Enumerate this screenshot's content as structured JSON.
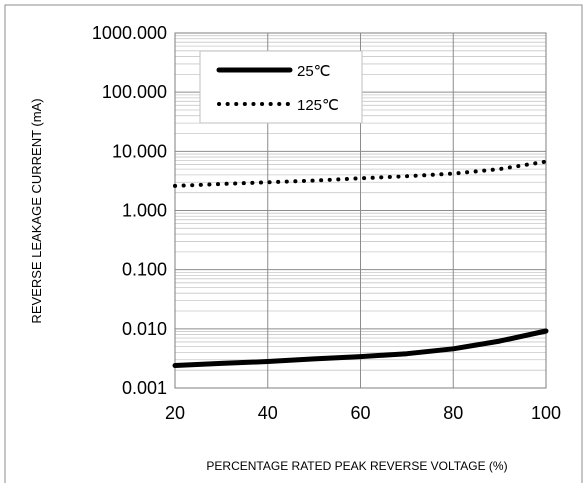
{
  "chart_data": {
    "type": "line",
    "xlabel": "PERCENTAGE RATED PEAK REVERSE VOLTAGE (%)",
    "ylabel": "REVERSE LEAKAGE CURRENT (mA)",
    "xlim": [
      20,
      100
    ],
    "ylim": [
      0.001,
      1000
    ],
    "yscale": "log",
    "grid": true,
    "legend_position": "top-left",
    "x_ticks": [
      "20",
      "40",
      "60",
      "80",
      "100"
    ],
    "y_ticks": [
      "0.001",
      "0.010",
      "0.100",
      "1.000",
      "10.000",
      "100.000",
      "1000.000"
    ],
    "series": [
      {
        "name": "25℃",
        "style": "solid",
        "color": "#000000",
        "x": [
          20,
          30,
          40,
          50,
          60,
          70,
          80,
          90,
          100
        ],
        "y": [
          0.0024,
          0.0026,
          0.0028,
          0.0031,
          0.0034,
          0.0038,
          0.0046,
          0.0062,
          0.0092
        ]
      },
      {
        "name": "125℃",
        "style": "dotted",
        "color": "#000000",
        "x": [
          20,
          30,
          40,
          50,
          60,
          70,
          80,
          90,
          100
        ],
        "y": [
          2.6,
          2.8,
          3.0,
          3.2,
          3.5,
          3.8,
          4.2,
          5.0,
          6.7
        ]
      }
    ]
  }
}
